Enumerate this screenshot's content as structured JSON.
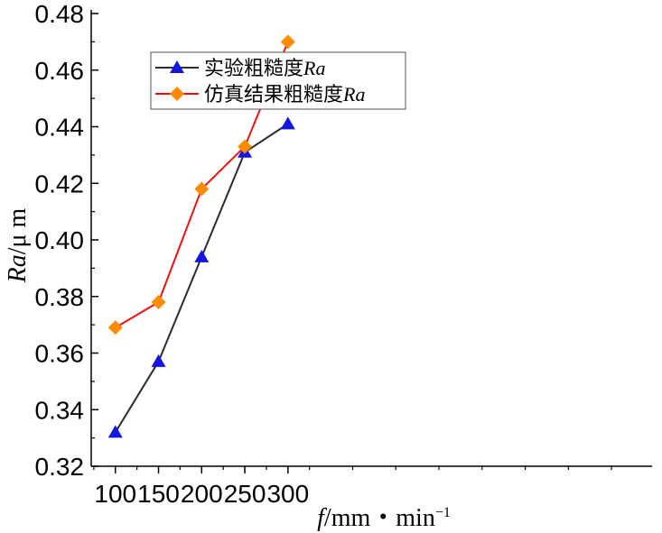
{
  "chart_data": {
    "type": "line",
    "x": [
      100,
      150,
      200,
      250,
      300
    ],
    "xlim": [
      72,
      722
    ],
    "ylim": [
      0.32,
      0.48
    ],
    "x_ticks": [
      100,
      150,
      200,
      250,
      300
    ],
    "y_ticks": [
      0.32,
      0.34,
      0.36,
      0.38,
      0.4,
      0.42,
      0.44,
      0.46,
      0.48
    ],
    "x_tick_labels": [
      "100",
      "150",
      "200",
      "250",
      "300"
    ],
    "y_tick_labels": [
      "0.32",
      "0.34",
      "0.36",
      "0.38",
      "0.40",
      "0.42",
      "0.44",
      "0.46",
      "0.48"
    ],
    "xlabel": {
      "var": "f",
      "unit": "/mm・min",
      "exp": "−1"
    },
    "ylabel": {
      "var": "Ra",
      "unit": "/μ m"
    },
    "grid": false,
    "legend_position": "top-left",
    "series": [
      {
        "name": "实验粗糙度",
        "name_italic": "Ra",
        "values": [
          0.332,
          0.357,
          0.394,
          0.431,
          0.441
        ],
        "line_color": "#2b2b2b",
        "marker": "triangle",
        "marker_color": "#1515e0"
      },
      {
        "name": "仿真结果粗糙度",
        "name_italic": "Ra",
        "values": [
          0.369,
          0.378,
          0.418,
          0.433,
          0.47
        ],
        "line_color": "#ee1111",
        "marker": "diamond",
        "marker_color": "#ff8c00"
      }
    ]
  }
}
